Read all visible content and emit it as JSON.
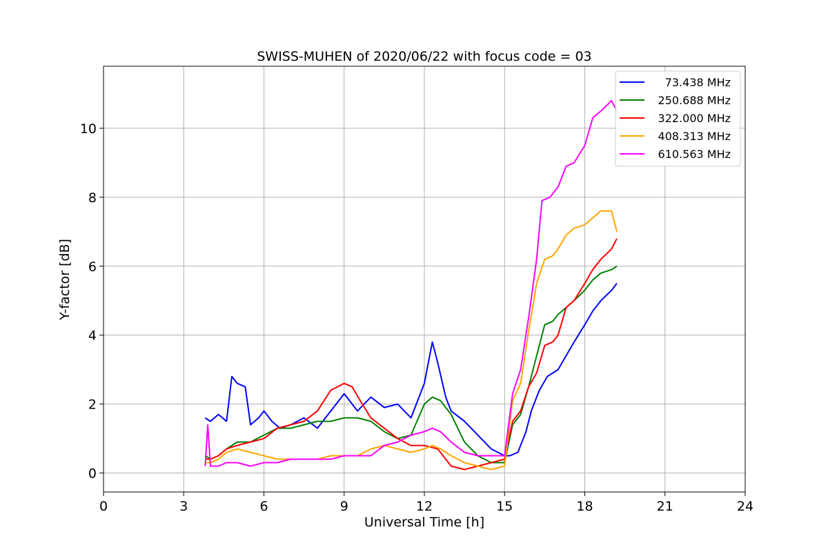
{
  "chart_data": {
    "type": "line",
    "title": "SWISS-MUHEN of 2020/06/22 with focus code = 03",
    "xlabel": "Universal Time [h]",
    "ylabel": "Y-factor [dB]",
    "xlim": [
      0,
      24
    ],
    "ylim": [
      -0.55,
      11.8
    ],
    "xticks": [
      0,
      3,
      6,
      9,
      12,
      15,
      18,
      21,
      24
    ],
    "yticks": [
      0,
      2,
      4,
      6,
      8,
      10
    ],
    "grid": true,
    "legend_position": "top-right",
    "series": [
      {
        "name": "73.438 MHz",
        "color": "#0000ff",
        "x": [
          3.8,
          4.0,
          4.3,
          4.6,
          4.8,
          5.0,
          5.3,
          5.5,
          5.8,
          6.0,
          6.3,
          6.6,
          7.0,
          7.5,
          8.0,
          8.5,
          9.0,
          9.5,
          10.0,
          10.5,
          11.0,
          11.5,
          12.0,
          12.3,
          12.5,
          12.8,
          13.0,
          13.5,
          14.0,
          14.5,
          15.0,
          15.2,
          15.5,
          15.8,
          16.0,
          16.3,
          16.6,
          17.0,
          17.3,
          17.6,
          18.0,
          18.3,
          18.6,
          19.0,
          19.2
        ],
        "y": [
          1.6,
          1.5,
          1.7,
          1.5,
          2.8,
          2.6,
          2.5,
          1.4,
          1.6,
          1.8,
          1.5,
          1.3,
          1.4,
          1.6,
          1.3,
          1.8,
          2.3,
          1.8,
          2.2,
          1.9,
          2.0,
          1.6,
          2.6,
          3.8,
          3.2,
          2.2,
          1.8,
          1.5,
          1.1,
          0.7,
          0.5,
          0.5,
          0.6,
          1.2,
          1.8,
          2.4,
          2.8,
          3.0,
          3.4,
          3.8,
          4.3,
          4.7,
          5.0,
          5.3,
          5.5
        ]
      },
      {
        "name": "250.688 MHz",
        "color": "#008000",
        "x": [
          3.8,
          4.0,
          4.3,
          4.6,
          5.0,
          5.5,
          6.0,
          6.5,
          7.0,
          7.5,
          8.0,
          8.5,
          9.0,
          9.5,
          10.0,
          10.5,
          11.0,
          11.5,
          12.0,
          12.3,
          12.6,
          13.0,
          13.5,
          14.0,
          14.5,
          15.0,
          15.3,
          15.6,
          15.9,
          16.2,
          16.5,
          16.8,
          17.0,
          17.3,
          17.6,
          18.0,
          18.3,
          18.6,
          19.0,
          19.2
        ],
        "y": [
          0.5,
          0.4,
          0.5,
          0.7,
          0.9,
          0.9,
          1.1,
          1.3,
          1.3,
          1.4,
          1.5,
          1.5,
          1.6,
          1.6,
          1.5,
          1.2,
          1.0,
          1.1,
          2.0,
          2.2,
          2.1,
          1.7,
          0.9,
          0.5,
          0.3,
          0.3,
          1.4,
          1.7,
          2.5,
          3.4,
          4.3,
          4.4,
          4.6,
          4.8,
          5.0,
          5.3,
          5.6,
          5.8,
          5.9,
          6.0
        ]
      },
      {
        "name": "322.000 MHz",
        "color": "#ff0000",
        "x": [
          3.8,
          4.0,
          4.3,
          4.6,
          5.0,
          5.5,
          6.0,
          6.5,
          7.0,
          7.5,
          8.0,
          8.5,
          9.0,
          9.3,
          9.6,
          10.0,
          10.5,
          11.0,
          11.5,
          12.0,
          12.5,
          13.0,
          13.5,
          14.0,
          14.5,
          15.0,
          15.3,
          15.6,
          15.9,
          16.2,
          16.5,
          16.8,
          17.0,
          17.3,
          17.6,
          18.0,
          18.3,
          18.6,
          19.0,
          19.2
        ],
        "y": [
          0.4,
          0.4,
          0.5,
          0.7,
          0.8,
          0.9,
          1.0,
          1.3,
          1.4,
          1.5,
          1.8,
          2.4,
          2.6,
          2.5,
          2.1,
          1.6,
          1.3,
          1.0,
          0.8,
          0.8,
          0.7,
          0.2,
          0.1,
          0.2,
          0.3,
          0.4,
          1.5,
          1.8,
          2.5,
          2.9,
          3.7,
          3.8,
          4.0,
          4.8,
          5.0,
          5.5,
          5.9,
          6.2,
          6.5,
          6.8
        ]
      },
      {
        "name": "408.313 MHz",
        "color": "#ffa500",
        "x": [
          3.8,
          4.0,
          4.3,
          4.6,
          5.0,
          5.5,
          6.0,
          6.5,
          7.0,
          7.5,
          8.0,
          8.5,
          9.0,
          9.5,
          10.0,
          10.5,
          11.0,
          11.5,
          12.0,
          12.3,
          12.6,
          13.0,
          13.5,
          14.0,
          14.5,
          15.0,
          15.3,
          15.6,
          15.9,
          16.2,
          16.5,
          16.8,
          17.0,
          17.3,
          17.6,
          18.0,
          18.3,
          18.6,
          19.0,
          19.2
        ],
        "y": [
          0.3,
          0.3,
          0.4,
          0.6,
          0.7,
          0.6,
          0.5,
          0.4,
          0.4,
          0.4,
          0.4,
          0.5,
          0.5,
          0.5,
          0.7,
          0.8,
          0.7,
          0.6,
          0.7,
          0.8,
          0.7,
          0.5,
          0.3,
          0.2,
          0.1,
          0.2,
          2.1,
          2.6,
          4.1,
          5.5,
          6.2,
          6.3,
          6.5,
          6.9,
          7.1,
          7.2,
          7.4,
          7.6,
          7.6,
          7.0
        ]
      },
      {
        "name": "610.563 MHz",
        "color": "#ff00ff",
        "x": [
          3.8,
          3.9,
          4.0,
          4.3,
          4.6,
          5.0,
          5.5,
          6.0,
          6.5,
          7.0,
          7.5,
          8.0,
          8.5,
          9.0,
          9.5,
          10.0,
          10.5,
          11.0,
          11.5,
          12.0,
          12.3,
          12.6,
          13.0,
          13.5,
          14.0,
          14.5,
          15.0,
          15.3,
          15.6,
          15.9,
          16.2,
          16.4,
          16.7,
          17.0,
          17.3,
          17.6,
          18.0,
          18.3,
          18.6,
          19.0,
          19.2
        ],
        "y": [
          0.2,
          1.4,
          0.2,
          0.2,
          0.3,
          0.3,
          0.2,
          0.3,
          0.3,
          0.4,
          0.4,
          0.4,
          0.4,
          0.5,
          0.5,
          0.5,
          0.8,
          0.9,
          1.1,
          1.2,
          1.3,
          1.2,
          0.9,
          0.6,
          0.5,
          0.5,
          0.5,
          2.3,
          3.0,
          4.5,
          6.2,
          7.9,
          8.0,
          8.3,
          8.9,
          9.0,
          9.5,
          10.3,
          10.5,
          10.8,
          10.5
        ]
      }
    ]
  }
}
